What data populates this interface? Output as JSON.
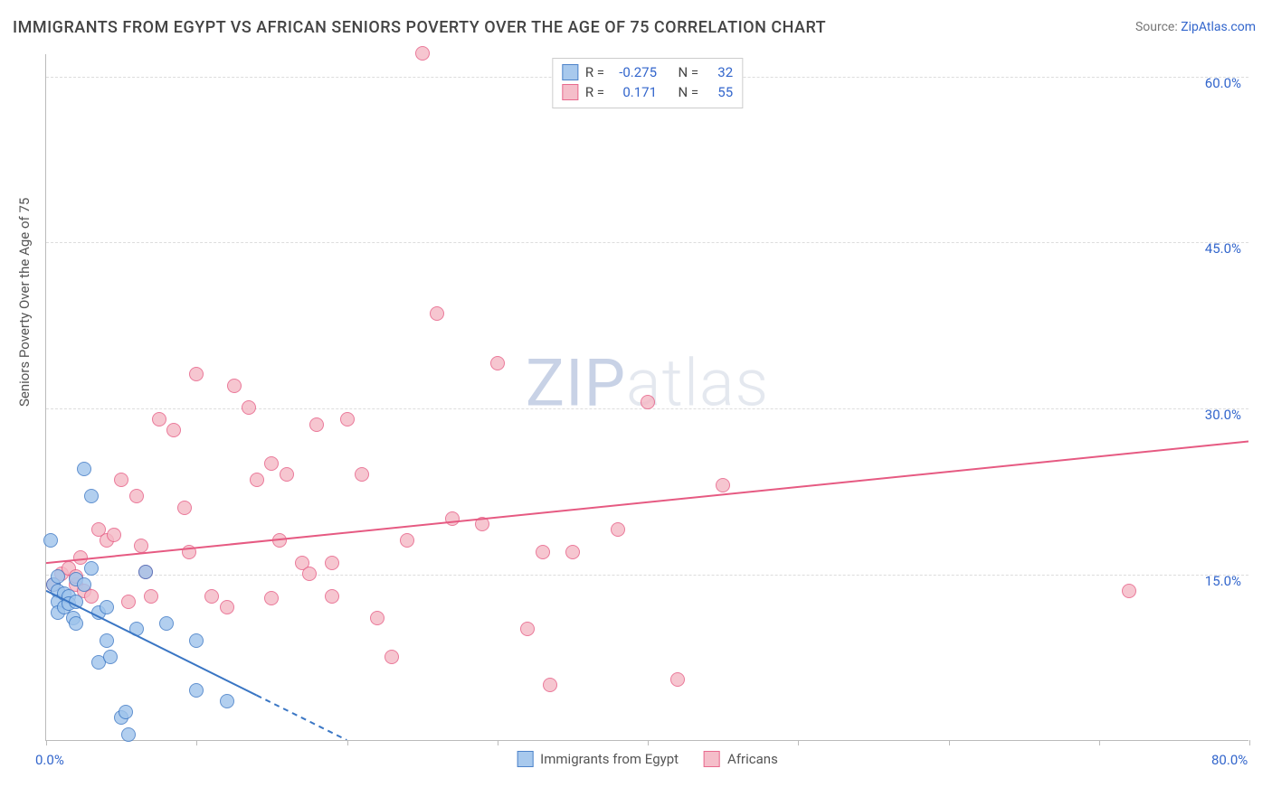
{
  "title": "IMMIGRANTS FROM EGYPT VS AFRICAN SENIORS POVERTY OVER THE AGE OF 75 CORRELATION CHART",
  "source_prefix": "Source: ",
  "source_link": "ZipAtlas.com",
  "y_axis_label": "Seniors Poverty Over the Age of 75",
  "watermark_zip": "ZIP",
  "watermark_atlas": "atlas",
  "chart": {
    "type": "scatter-with-trend",
    "xlim": [
      0,
      80
    ],
    "ylim": [
      0,
      62
    ],
    "background_color": "#ffffff",
    "grid_color": "#dddddd",
    "axis_color": "#bbbbbb",
    "tick_label_color": "#3366cc",
    "x_ticks_major": [
      0,
      10,
      20,
      30,
      40,
      50,
      60,
      70,
      80
    ],
    "x_tick_labels": [
      {
        "v": 0,
        "t": "0.0%"
      },
      {
        "v": 80,
        "t": "80.0%"
      }
    ],
    "y_ticks": [
      {
        "v": 15,
        "t": "15.0%"
      },
      {
        "v": 30,
        "t": "30.0%"
      },
      {
        "v": 45,
        "t": "45.0%"
      },
      {
        "v": 60,
        "t": "60.0%"
      }
    ],
    "marker_radius": 8,
    "marker_stroke_width": 1.5,
    "trend_line_width": 2
  },
  "series": [
    {
      "key": "egypt",
      "label": "Immigrants from Egypt",
      "fill": "#9fc4ec",
      "stroke": "#3a76c4",
      "fill_opacity": 0.55,
      "R": "-0.275",
      "N": "32",
      "trend": {
        "x1": 0,
        "y1": 13.5,
        "x2": 20,
        "y2": 0,
        "dash_after_x": 14
      },
      "points": [
        [
          0.3,
          18
        ],
        [
          0.5,
          14
        ],
        [
          0.8,
          13.5
        ],
        [
          0.8,
          12.5
        ],
        [
          0.8,
          11.5
        ],
        [
          0.8,
          14.8
        ],
        [
          1.2,
          13.2
        ],
        [
          1.2,
          12
        ],
        [
          1.5,
          13
        ],
        [
          1.5,
          12.3
        ],
        [
          1.8,
          11
        ],
        [
          2,
          12.5
        ],
        [
          2,
          10.5
        ],
        [
          2,
          14.5
        ],
        [
          2.5,
          14
        ],
        [
          2.5,
          24.5
        ],
        [
          3,
          22
        ],
        [
          3,
          15.5
        ],
        [
          3.5,
          7
        ],
        [
          3.5,
          11.5
        ],
        [
          4,
          9
        ],
        [
          4,
          12
        ],
        [
          4.3,
          7.5
        ],
        [
          5,
          2
        ],
        [
          5.3,
          2.5
        ],
        [
          5.5,
          0.5
        ],
        [
          6,
          10
        ],
        [
          6.6,
          15.2
        ],
        [
          8,
          10.5
        ],
        [
          10,
          9
        ],
        [
          10,
          4.5
        ],
        [
          12,
          3.5
        ]
      ]
    },
    {
      "key": "africans",
      "label": "Africans",
      "fill": "#f5b8c5",
      "stroke": "#e65a82",
      "fill_opacity": 0.55,
      "R": "0.171",
      "N": "55",
      "trend": {
        "x1": 0,
        "y1": 16,
        "x2": 80,
        "y2": 27
      },
      "points": [
        [
          0.5,
          14
        ],
        [
          1,
          15
        ],
        [
          1.5,
          15.5
        ],
        [
          2,
          14
        ],
        [
          2,
          14.8
        ],
        [
          2.3,
          16.5
        ],
        [
          2.5,
          13.5
        ],
        [
          3,
          13
        ],
        [
          3.5,
          19
        ],
        [
          4,
          18
        ],
        [
          4.5,
          18.5
        ],
        [
          5,
          23.5
        ],
        [
          5.5,
          12.5
        ],
        [
          6,
          22
        ],
        [
          6.3,
          17.5
        ],
        [
          6.6,
          15.2
        ],
        [
          7,
          13
        ],
        [
          7.5,
          29
        ],
        [
          8.5,
          28
        ],
        [
          9.2,
          21
        ],
        [
          9.5,
          17
        ],
        [
          10,
          33
        ],
        [
          11,
          13
        ],
        [
          12,
          12
        ],
        [
          12.5,
          32
        ],
        [
          13.5,
          30
        ],
        [
          14,
          23.5
        ],
        [
          15,
          25
        ],
        [
          15,
          12.8
        ],
        [
          15.5,
          18
        ],
        [
          16,
          24
        ],
        [
          17,
          16
        ],
        [
          17.5,
          15
        ],
        [
          18,
          28.5
        ],
        [
          19,
          16
        ],
        [
          19,
          13
        ],
        [
          20,
          29
        ],
        [
          21,
          24
        ],
        [
          22,
          11
        ],
        [
          23,
          7.5
        ],
        [
          24,
          18
        ],
        [
          25,
          62
        ],
        [
          26,
          38.5
        ],
        [
          27,
          20
        ],
        [
          29,
          19.5
        ],
        [
          30,
          34
        ],
        [
          32,
          10
        ],
        [
          33,
          17
        ],
        [
          33.5,
          5
        ],
        [
          38,
          19
        ],
        [
          40,
          30.5
        ],
        [
          42,
          5.5
        ],
        [
          45,
          23
        ],
        [
          72,
          13.5
        ],
        [
          35,
          17
        ]
      ]
    }
  ],
  "legend_inline": {
    "R_label": "R =",
    "N_label": "N ="
  }
}
